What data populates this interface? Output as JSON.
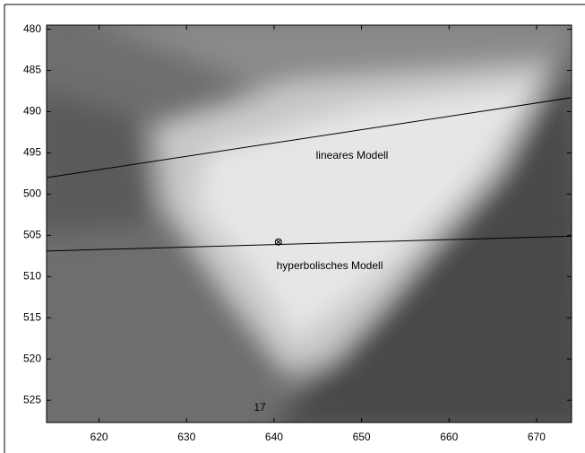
{
  "chart_data": {
    "type": "image",
    "xlim": [
      614,
      674
    ],
    "ylim": [
      527.7,
      479.5
    ],
    "xticks": [
      620,
      630,
      640,
      650,
      660,
      670
    ],
    "yticks": [
      480,
      485,
      490,
      495,
      500,
      505,
      510,
      515,
      520,
      525
    ],
    "lines": [
      {
        "label": "lineares Modell",
        "color": "#000000",
        "x": [
          614,
          674
        ],
        "y": [
          498,
          488.3
        ]
      },
      {
        "label": "hyperbolisches Modell",
        "color": "#000000",
        "x": [
          614,
          674
        ],
        "y": [
          506.9,
          505.1
        ]
      }
    ],
    "marker": {
      "x": 640.5,
      "y": 505.8
    },
    "annotation": "17"
  }
}
